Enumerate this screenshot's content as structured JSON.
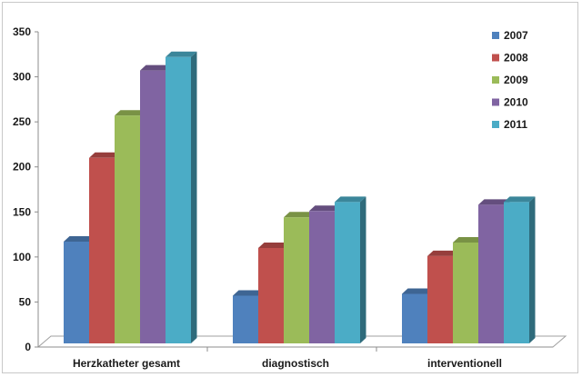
{
  "chart_data": {
    "type": "bar",
    "title": "",
    "xlabel": "",
    "ylabel": "",
    "ylim": [
      0,
      350
    ],
    "yticks": [
      0,
      50,
      100,
      150,
      200,
      250,
      300,
      350
    ],
    "categories": [
      "Herzkatheter gesamt",
      "diagnostisch",
      "interventionell"
    ],
    "series": [
      {
        "name": "2007",
        "color": "#4f81bd",
        "values": [
          117,
          57,
          59
        ]
      },
      {
        "name": "2008",
        "color": "#c0504d",
        "values": [
          210,
          110,
          101
        ]
      },
      {
        "name": "2009",
        "color": "#9bbb59",
        "values": [
          257,
          144,
          116
        ]
      },
      {
        "name": "2010",
        "color": "#8064a2",
        "values": [
          307,
          151,
          158
        ]
      },
      {
        "name": "2011",
        "color": "#4bacc6",
        "values": [
          322,
          161,
          161
        ]
      }
    ],
    "grid": false,
    "legend_position": "top-right",
    "style": "3d-clustered-column"
  }
}
